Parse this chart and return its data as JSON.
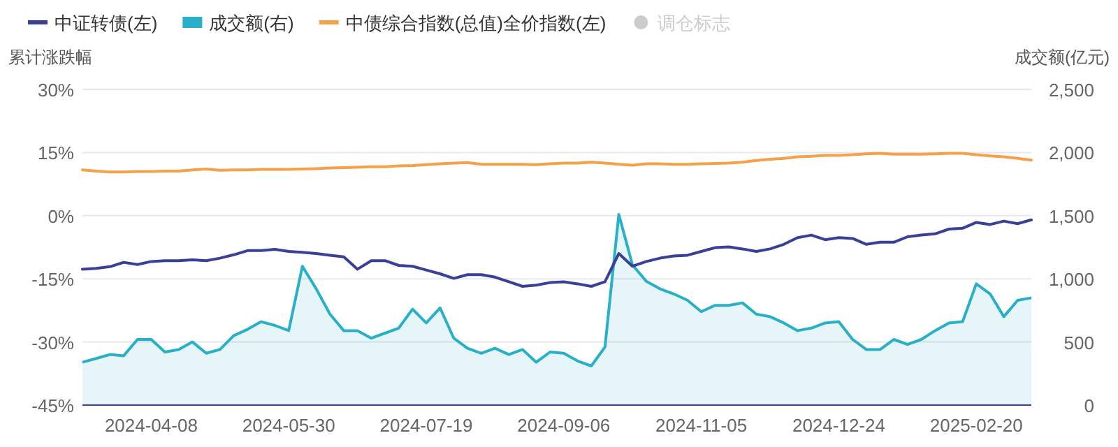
{
  "chart_data": {
    "type": "line",
    "xlabel": null,
    "ylabel": "累计涨跌幅",
    "y2label": "成交额(亿元)",
    "categories": [
      null,
      null,
      null,
      null,
      null,
      "2024-04-08",
      null,
      null,
      null,
      null,
      null,
      null,
      null,
      null,
      null,
      "2024-05-30",
      null,
      null,
      null,
      null,
      null,
      null,
      null,
      null,
      null,
      "2024-07-19",
      null,
      null,
      null,
      null,
      null,
      null,
      null,
      null,
      null,
      "2024-09-06",
      null,
      null,
      null,
      null,
      null,
      null,
      null,
      null,
      null,
      "2024-11-05",
      null,
      null,
      null,
      null,
      null,
      null,
      null,
      null,
      null,
      "2024-12-24",
      null,
      null,
      null,
      null,
      null,
      null,
      null,
      null,
      null,
      "2025-02-20",
      null,
      null,
      null,
      null
    ],
    "ylim": [
      -45,
      30
    ],
    "yticks": [
      {
        "value": -45,
        "label": "-45%"
      },
      {
        "value": -30,
        "label": "-30%"
      },
      {
        "value": -15,
        "label": "-15%"
      },
      {
        "value": 0,
        "label": "0%"
      },
      {
        "value": 15,
        "label": "15%"
      },
      {
        "value": 30,
        "label": "30%"
      }
    ],
    "y2lim": [
      0,
      2500
    ],
    "y2ticks": [
      0,
      {
        "value": 500,
        "label": "500"
      },
      {
        "value": 1000,
        "label": "1,000"
      },
      {
        "value": 1500,
        "label": "1,500"
      },
      {
        "value": 2000,
        "label": "2,000"
      },
      {
        "value": 2500,
        "label": "2,500"
      }
    ],
    "grid": "y",
    "legend": "top left",
    "marker": "none",
    "line_style": "solid",
    "series": [
      {
        "name": "中证转债(左)",
        "color": "#3a3f98",
        "values": [
          -12.7,
          -12.5,
          -12.1,
          -11.1,
          -11.6,
          -10.9,
          -10.7,
          -10.7,
          -10.5,
          -10.7,
          -10.1,
          -9.3,
          -8.3,
          -8.3,
          -8.0,
          -8.5,
          -8.7,
          -9.0,
          -9.4,
          -9.8,
          -12.7,
          -10.7,
          -10.7,
          -11.8,
          -12.0,
          -12.9,
          -13.8,
          -14.9,
          -14.0,
          -14.0,
          -14.6,
          -15.7,
          -16.8,
          -16.5,
          -15.9,
          -15.7,
          -16.2,
          -16.8,
          -15.7,
          -9.0,
          -12.0,
          -10.9,
          -10.1,
          -9.6,
          -9.4,
          -8.5,
          -7.6,
          -7.4,
          -7.9,
          -8.5,
          -7.9,
          -6.8,
          -5.2,
          -4.6,
          -5.7,
          -5.2,
          -5.4,
          -6.8,
          -6.3,
          -6.3,
          -5.0,
          -4.6,
          -4.3,
          -3.2,
          -3.0,
          -1.6,
          -2.1,
          -1.3,
          -1.9,
          -1.0
        ]
      },
      {
        "name": "成交额(右)",
        "type": "area",
        "axis": "y2",
        "color": "#29b0c8",
        "values": [
          340,
          370,
          400,
          390,
          520,
          520,
          420,
          440,
          500,
          410,
          440,
          550,
          600,
          660,
          630,
          590,
          1100,
          920,
          720,
          590,
          590,
          530,
          570,
          610,
          760,
          650,
          770,
          530,
          450,
          410,
          450,
          400,
          440,
          340,
          420,
          410,
          350,
          310,
          460,
          1510,
          1110,
          980,
          920,
          880,
          830,
          740,
          790,
          790,
          810,
          720,
          700,
          650,
          590,
          610,
          650,
          660,
          520,
          440,
          440,
          520,
          480,
          520,
          590,
          650,
          660,
          960,
          880,
          700,
          830,
          850
        ]
      },
      {
        "name": "中债综合指数(总值)全价指数(左)",
        "color": "#f7a04a",
        "values": [
          10.9,
          10.6,
          10.4,
          10.4,
          10.5,
          10.5,
          10.6,
          10.6,
          10.9,
          11.1,
          10.8,
          10.9,
          10.9,
          11.0,
          11.0,
          11.0,
          11.1,
          11.2,
          11.3,
          11.4,
          11.5,
          11.6,
          11.6,
          11.8,
          11.9,
          12.1,
          12.3,
          12.5,
          12.6,
          12.2,
          12.2,
          12.2,
          12.2,
          12.1,
          12.3,
          12.5,
          12.5,
          12.7,
          12.5,
          12.2,
          12.0,
          12.3,
          12.3,
          12.2,
          12.2,
          12.3,
          12.4,
          12.5,
          12.7,
          13.1,
          13.4,
          13.6,
          14.0,
          14.1,
          14.3,
          14.3,
          14.5,
          14.7,
          14.8,
          14.6,
          14.6,
          14.6,
          14.7,
          14.8,
          14.8,
          14.5,
          14.2,
          14.0,
          13.6,
          13.2
        ]
      },
      {
        "name": "调仓标志",
        "type": "scatter",
        "color": "#cccccc",
        "values": [
          null,
          null,
          null,
          null,
          null,
          null,
          null,
          null,
          null,
          null,
          null,
          null,
          null,
          null,
          null,
          null,
          null,
          null,
          null,
          null,
          null,
          null,
          null,
          null,
          null,
          null,
          null,
          null,
          null,
          null,
          null,
          null,
          null,
          null,
          null,
          null,
          null,
          null,
          null,
          null,
          null,
          null,
          null,
          null,
          null,
          null,
          null,
          null,
          null,
          null,
          null,
          null,
          null,
          null,
          null,
          null,
          null,
          null,
          null,
          null,
          null,
          null,
          null,
          null,
          null,
          null,
          null,
          null,
          null,
          null
        ]
      }
    ]
  }
}
